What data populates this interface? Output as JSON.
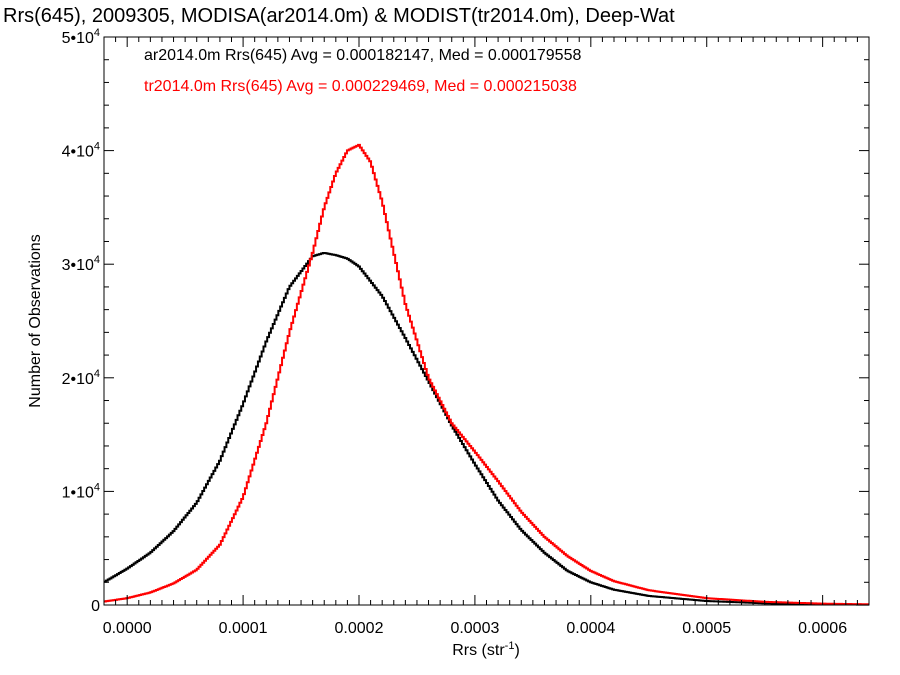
{
  "chart_data": {
    "type": "line",
    "title": "Rrs(645), 2009305, MODISA(ar2014.0m) & MODIST(tr2014.0m), Deep-Wat",
    "xlabel": "Rrs (str",
    "xlabel_sup": "-1",
    "xlabel_end": ")",
    "ylabel": "Number of Observations",
    "xlim": [
      -2e-05,
      0.00064
    ],
    "ylim": [
      0,
      50000
    ],
    "grid": false,
    "x_ticks": [
      {
        "value": 0.0,
        "label": "0.0000"
      },
      {
        "value": 0.0001,
        "label": "0.0001"
      },
      {
        "value": 0.0002,
        "label": "0.0002"
      },
      {
        "value": 0.0003,
        "label": "0.0003"
      },
      {
        "value": 0.0004,
        "label": "0.0004"
      },
      {
        "value": 0.0005,
        "label": "0.0005"
      },
      {
        "value": 0.0006,
        "label": "0.0006"
      }
    ],
    "y_ticks": [
      {
        "value": 0,
        "label": "0",
        "sup": ""
      },
      {
        "value": 10000,
        "label": "1•10",
        "sup": "4"
      },
      {
        "value": 20000,
        "label": "2•10",
        "sup": "4"
      },
      {
        "value": 30000,
        "label": "3•10",
        "sup": "4"
      },
      {
        "value": 40000,
        "label": "4•10",
        "sup": "4"
      },
      {
        "value": 50000,
        "label": "5•10",
        "sup": "4"
      }
    ],
    "annotations": [
      {
        "text": "ar2014.0m Rrs(645) Avg = 0.000182147, Med = 0.000179558",
        "color": "#000000"
      },
      {
        "text": "tr2014.0m Rrs(645) Avg = 0.000229469, Med = 0.000215038",
        "color": "#ff0000"
      }
    ],
    "series": [
      {
        "color": "#000000",
        "x": [
          -2e-05,
          -1e-05,
          0.0,
          2e-05,
          4e-05,
          6e-05,
          8e-05,
          0.0001,
          0.00012,
          0.00014,
          0.00016,
          0.00017,
          0.00018,
          0.00019,
          0.0002,
          0.00022,
          0.00024,
          0.00026,
          0.00028,
          0.0003,
          0.00032,
          0.00034,
          0.00036,
          0.00038,
          0.0004,
          0.00042,
          0.00045,
          0.0005,
          0.00055,
          0.0006,
          0.00064
        ],
        "y": [
          2000,
          2600,
          3200,
          4600,
          6500,
          9000,
          12700,
          17700,
          23200,
          28000,
          30700,
          31000,
          30800,
          30500,
          29800,
          27200,
          23500,
          19700,
          15800,
          12400,
          9200,
          6600,
          4600,
          3000,
          2000,
          1350,
          800,
          350,
          150,
          60,
          30
        ]
      },
      {
        "color": "#ff0000",
        "x": [
          -2e-05,
          0.0,
          2e-05,
          4e-05,
          6e-05,
          8e-05,
          0.0001,
          0.00012,
          0.00014,
          0.00016,
          0.00017,
          0.00018,
          0.00019,
          0.0002,
          0.00021,
          0.00022,
          0.00023,
          0.00024,
          0.00026,
          0.00028,
          0.0003,
          0.00032,
          0.00034,
          0.00036,
          0.00038,
          0.0004,
          0.00042,
          0.00045,
          0.0005,
          0.00055,
          0.0006,
          0.00064
        ],
        "y": [
          300,
          600,
          1100,
          1900,
          3100,
          5300,
          9500,
          16000,
          24000,
          31000,
          35000,
          38000,
          40000,
          40500,
          39000,
          35500,
          31000,
          26500,
          20000,
          16000,
          13500,
          10900,
          8200,
          6000,
          4300,
          3000,
          2100,
          1300,
          600,
          280,
          120,
          60
        ]
      }
    ]
  }
}
